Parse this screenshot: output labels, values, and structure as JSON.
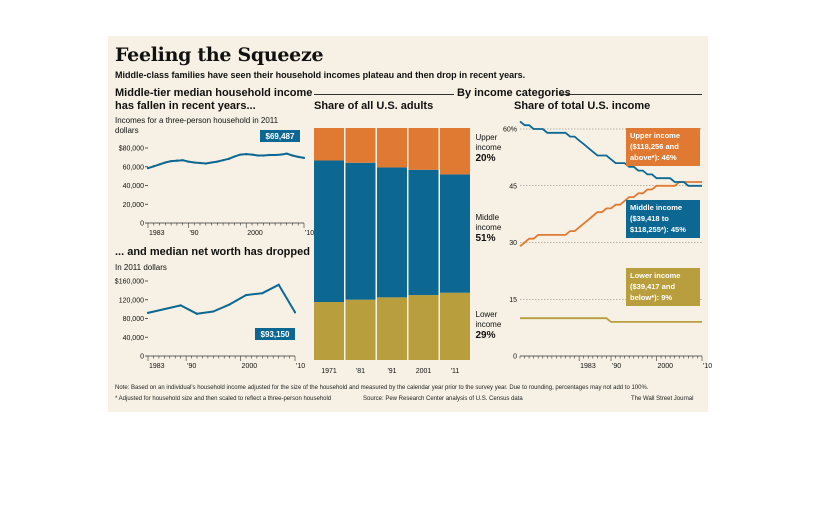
{
  "header": {
    "title": "Feeling the Squeeze",
    "subtitle": "Middle-class families have seen their household incomes plateau and then drop in recent years."
  },
  "left": {
    "heading_line1": "Middle-tier median household income",
    "heading_line2": "has fallen in recent years...",
    "caption_line1": "Incomes for a three-person household in 2011",
    "caption_line2": "dollars",
    "heading2": "... and median net worth has dropped",
    "caption2": "In 2011 dollars"
  },
  "right_heading": "By income categories",
  "middle": {
    "heading": "Share of all U.S. adults"
  },
  "right": {
    "heading": "Share of total U.S. income"
  },
  "footer": {
    "note": "Note: Based on an individual's household income adjusted for the size of the household and measured by the calendar year prior to the survey year. Due to rounding, percentages may not add to 100%.",
    "footnote": "* Adjusted for household size and then scaled to reflect a three-person household",
    "source": "Source: Pew Research Center analysis of U.S. Census data",
    "credit": "The Wall Street Journal"
  },
  "colors": {
    "upper": "#e07a32",
    "middle": "#0c6893",
    "lower": "#b99e3e",
    "panel": "#f6f1e4"
  },
  "chart_data": [
    {
      "id": "income",
      "type": "line",
      "title": "Middle-tier median household income has fallen in recent years...",
      "ylabel": "Incomes for a three-person household in 2011 dollars",
      "x": [
        1983,
        1984,
        1985,
        1986,
        1987,
        1988,
        1989,
        1990,
        1991,
        1992,
        1993,
        1994,
        1995,
        1996,
        1997,
        1998,
        1999,
        2000,
        2001,
        2002,
        2003,
        2004,
        2005,
        2006,
        2007,
        2008,
        2009,
        2010
      ],
      "values": [
        58500,
        60500,
        62500,
        64500,
        66000,
        66500,
        67000,
        65500,
        64500,
        64000,
        63500,
        64500,
        65500,
        67000,
        68500,
        71000,
        73000,
        73500,
        73000,
        72000,
        72000,
        72500,
        72500,
        73000,
        74000,
        72000,
        70500,
        69487
      ],
      "ylim": [
        0,
        80000
      ],
      "yticks": [
        "$80,000",
        "60,000",
        "40,000",
        "20,000",
        "0"
      ],
      "ytick_values": [
        80000,
        60000,
        40000,
        20000,
        0
      ],
      "xticks": [
        "1983",
        "'90",
        "2000",
        "'10"
      ],
      "xtick_values": [
        1983,
        1990,
        2000,
        2010
      ],
      "annotation": "$69,487"
    },
    {
      "id": "networth",
      "type": "line",
      "title": "... and median net worth has dropped",
      "ylabel": "In 2011 dollars",
      "x": [
        1983,
        1989,
        1992,
        1995,
        1998,
        2001,
        2004,
        2007,
        2010
      ],
      "values": [
        92000,
        108000,
        90000,
        95000,
        110000,
        130000,
        134000,
        152000,
        93150
      ],
      "ylim": [
        0,
        160000
      ],
      "yticks": [
        "$160,000",
        "120,000",
        "80,000",
        "40,000",
        "0"
      ],
      "ytick_values": [
        160000,
        120000,
        80000,
        40000,
        0
      ],
      "xticks": [
        "1983",
        "'90",
        "2000",
        "'10"
      ],
      "xtick_values": [
        1983,
        1990,
        2000,
        2010
      ],
      "annotation": "$93,150"
    },
    {
      "id": "adults",
      "type": "bar",
      "stacked": true,
      "title": "Share of all U.S. adults",
      "categories": [
        "1971",
        "'81",
        "'91",
        "2001",
        "'11"
      ],
      "series": [
        {
          "name": "Lower income",
          "values": [
            25,
            26,
            27,
            28,
            29
          ]
        },
        {
          "name": "Middle income",
          "values": [
            61,
            59,
            56,
            54,
            51
          ]
        },
        {
          "name": "Upper income",
          "values": [
            14,
            15,
            17,
            18,
            20
          ]
        }
      ],
      "ylim": [
        0,
        100
      ],
      "labels": [
        {
          "line1": "Upper",
          "line2": "income",
          "pct": "20%"
        },
        {
          "line1": "Middle",
          "line2": "income",
          "pct": "51%"
        },
        {
          "line1": "Lower",
          "line2": "income",
          "pct": "29%"
        }
      ]
    },
    {
      "id": "share",
      "type": "line",
      "title": "Share of total U.S. income",
      "x": [
        1970,
        1971,
        1972,
        1973,
        1974,
        1975,
        1976,
        1977,
        1978,
        1979,
        1980,
        1981,
        1982,
        1983,
        1984,
        1985,
        1986,
        1987,
        1988,
        1989,
        1990,
        1991,
        1992,
        1993,
        1994,
        1995,
        1996,
        1997,
        1998,
        1999,
        2000,
        2001,
        2002,
        2003,
        2004,
        2005,
        2006,
        2007,
        2008,
        2009,
        2010
      ],
      "series": [
        {
          "name": "Upper income ($118,256 and above*): 46%",
          "values": [
            29,
            30,
            31,
            31,
            32,
            32,
            32,
            32,
            32,
            32,
            32,
            33,
            33,
            34,
            35,
            36,
            37,
            38,
            38,
            39,
            39,
            40,
            40,
            41,
            42,
            42,
            43,
            43,
            44,
            44,
            45,
            45,
            45,
            45,
            45,
            46,
            46,
            46,
            46,
            46,
            46
          ]
        },
        {
          "name": "Middle income ($39,418 to $118,255*): 45%",
          "values": [
            62,
            61,
            61,
            60,
            60,
            60,
            59,
            59,
            59,
            59,
            59,
            58,
            58,
            57,
            56,
            55,
            54,
            53,
            53,
            53,
            52,
            51,
            51,
            51,
            50,
            50,
            49,
            49,
            48,
            48,
            47,
            47,
            47,
            47,
            46,
            46,
            46,
            45,
            45,
            45,
            45
          ]
        },
        {
          "name": "Lower income ($39,417 and below*): 9%",
          "values": [
            10,
            10,
            10,
            10,
            10,
            10,
            10,
            10,
            10,
            10,
            10,
            10,
            10,
            10,
            10,
            10,
            10,
            10,
            10,
            10,
            9,
            9,
            9,
            9,
            9,
            9,
            9,
            9,
            9,
            9,
            9,
            9,
            9,
            9,
            9,
            9,
            9,
            9,
            9,
            9,
            9
          ]
        }
      ],
      "ylim": [
        0,
        60
      ],
      "yticks": [
        "60%",
        "45",
        "30",
        "15",
        "0"
      ],
      "ytick_values": [
        60,
        45,
        30,
        15,
        0
      ],
      "xticks": [
        "1983",
        "'90",
        "2000",
        "'10"
      ],
      "xtick_values": [
        1983,
        1990,
        2000,
        2010
      ],
      "grid": true,
      "labels": [
        {
          "lines": [
            "Upper income",
            "($118,256 and",
            "above*): 46%"
          ]
        },
        {
          "lines": [
            "Middle income",
            "($39,418 to",
            "$118,255*): 45%"
          ]
        },
        {
          "lines": [
            "Lower income",
            "($39,417 and",
            "below*): 9%"
          ]
        }
      ]
    }
  ]
}
